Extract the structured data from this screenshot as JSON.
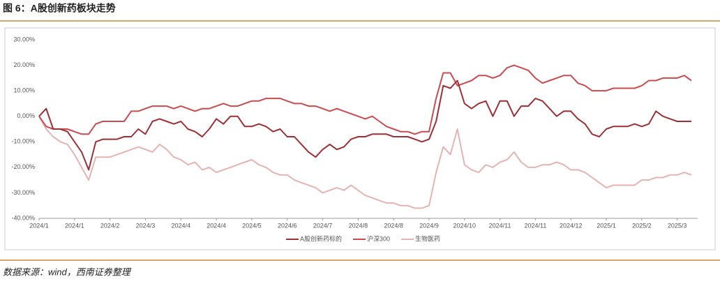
{
  "title": "图 6：A股创新药板块走势",
  "source": "数据来源：wind，西南证券整理",
  "chart_data": {
    "type": "line",
    "xlim": [
      0,
      92
    ],
    "xticks": [
      {
        "value": 0,
        "label": "2024/1"
      },
      {
        "value": 5,
        "label": "2024/1"
      },
      {
        "value": 10,
        "label": "2024/2"
      },
      {
        "value": 15,
        "label": "2024/3"
      },
      {
        "value": 20,
        "label": "2024/4"
      },
      {
        "value": 25,
        "label": "2024/4"
      },
      {
        "value": 30,
        "label": "2024/5"
      },
      {
        "value": 35,
        "label": "2024/6"
      },
      {
        "value": 40,
        "label": "2024/7"
      },
      {
        "value": 45,
        "label": "2024/8"
      },
      {
        "value": 50,
        "label": "2024/8"
      },
      {
        "value": 55,
        "label": "2024/9"
      },
      {
        "value": 60,
        "label": "2024/10"
      },
      {
        "value": 65,
        "label": "2024/11"
      },
      {
        "value": 70,
        "label": "2024/11"
      },
      {
        "value": 75,
        "label": "2024/12"
      },
      {
        "value": 80,
        "label": "2025/1"
      },
      {
        "value": 85,
        "label": "2025/2"
      },
      {
        "value": 90,
        "label": "2025/3"
      }
    ],
    "ylim": [
      -40,
      30
    ],
    "yticks": [
      {
        "value": -40,
        "label": "-40.00%"
      },
      {
        "value": -30,
        "label": "-30.00%"
      },
      {
        "value": -20,
        "label": "-20.00%"
      },
      {
        "value": -10,
        "label": "-10.00%"
      },
      {
        "value": 0,
        "label": "0.00%"
      },
      {
        "value": 10,
        "label": "10.00%"
      },
      {
        "value": 20,
        "label": "20.00%"
      },
      {
        "value": 30,
        "label": "30.00%"
      }
    ],
    "legend": "bottom",
    "series": [
      {
        "name": "A股创新药标的",
        "color": "#9e2f35",
        "values": [
          0,
          3,
          -5,
          -5,
          -6,
          -10,
          -14,
          -21,
          -10,
          -9,
          -9,
          -9,
          -8,
          -8,
          -5,
          -7,
          -2,
          -1,
          -2,
          -3,
          -2,
          -5,
          -6,
          -8,
          -5,
          -1,
          -3,
          0,
          0,
          -4,
          -4,
          -3,
          -4,
          -6,
          -5,
          -8,
          -8,
          -11,
          -14,
          -16,
          -13,
          -11,
          -13,
          -12,
          -9,
          -8,
          -8,
          -7,
          -7,
          -7,
          -8,
          -8,
          -8,
          -9,
          -10,
          -9,
          -2,
          12,
          11,
          14,
          5,
          3,
          5,
          6,
          0,
          6,
          6,
          0,
          4,
          4,
          7,
          6,
          3,
          0,
          2,
          2,
          -1,
          -3,
          -7,
          -8,
          -5,
          -4,
          -4,
          -4,
          -3,
          -4,
          -3,
          2,
          0,
          -1,
          -2,
          -2,
          -2
        ]
      },
      {
        "name": "沪深300",
        "color": "#cc4a4f",
        "values": [
          0,
          -4,
          -5,
          -5,
          -5,
          -6,
          -7,
          -7,
          -3,
          -2,
          -2,
          -2,
          -2,
          2,
          2,
          3,
          4,
          4,
          4,
          3,
          4,
          3,
          2,
          3,
          3,
          4,
          5,
          4,
          4,
          5,
          6,
          6,
          7,
          7,
          7,
          6,
          5,
          5,
          4,
          4,
          3,
          2,
          3,
          2,
          1,
          0,
          -1,
          0,
          -2,
          -4,
          -5,
          -6,
          -6,
          -7,
          -6,
          -6,
          7,
          17,
          17,
          12,
          13,
          14,
          16,
          16,
          15,
          16,
          19,
          20,
          19,
          18,
          15,
          13,
          14,
          15,
          16,
          16,
          13,
          12,
          10,
          10,
          10,
          11,
          11,
          11,
          11,
          12,
          14,
          14,
          15,
          15,
          15,
          16,
          14
        ]
      },
      {
        "name": "生物医药",
        "color": "#e6b3b3",
        "values": [
          0,
          -5,
          -8,
          -10,
          -11,
          -15,
          -20,
          -25,
          -16,
          -16,
          -16,
          -15,
          -14,
          -13,
          -12,
          -13,
          -14,
          -11,
          -13,
          -16,
          -17,
          -19,
          -18,
          -21,
          -20,
          -22,
          -21,
          -20,
          -19,
          -18,
          -17,
          -19,
          -20,
          -22,
          -23,
          -23,
          -25,
          -26,
          -27,
          -28,
          -30,
          -29,
          -28,
          -29,
          -27,
          -29,
          -31,
          -32,
          -33,
          -34,
          -34,
          -35,
          -35,
          -36,
          -36,
          -35,
          -22,
          -12,
          -15,
          -5,
          -19,
          -21,
          -22,
          -19,
          -20,
          -18,
          -17,
          -14,
          -18,
          -20,
          -20,
          -19,
          -19,
          -18,
          -19,
          -21,
          -21,
          -22,
          -24,
          -26,
          -28,
          -27,
          -27,
          -27,
          -27,
          -25,
          -25,
          -24,
          -24,
          -23,
          -23,
          -22,
          -23
        ]
      }
    ]
  }
}
